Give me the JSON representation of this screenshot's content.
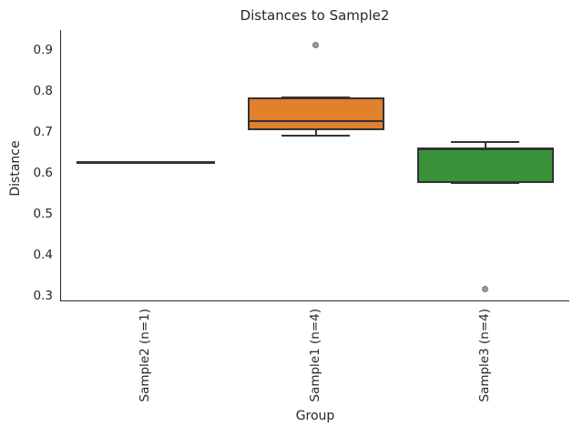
{
  "title": "Distances to Sample2",
  "axes": {
    "x_label": "Group",
    "y_label": "Distance",
    "y_tick_labels": [
      "0.9",
      "0.8",
      "0.7",
      "0.6",
      "0.5",
      "0.4",
      "0.3"
    ],
    "x_tick_labels": [
      "Sample2 (n=1)",
      "Sample1 (n=4)",
      "Sample3 (n=4)"
    ]
  },
  "colors": {
    "line": "#333333",
    "spine": "#262626",
    "text": "#262626",
    "flier_fill": "#9b9b9b",
    "flier_edge": "#757575",
    "background": "#ffffff"
  },
  "chart_data": {
    "type": "boxplot",
    "title": "Distances to Sample2",
    "xlabel": "Group",
    "ylabel": "Distance",
    "ylim": [
      0.287,
      0.949
    ],
    "y_ticks": [
      0.9,
      0.8,
      0.7,
      0.6,
      0.5,
      0.4,
      0.3
    ],
    "categories": [
      "Sample2 (n=1)",
      "Sample1 (n=4)",
      "Sample3 (n=4)"
    ],
    "grid": false,
    "legend": false,
    "groups": [
      {
        "label": "Sample2 (n=1)",
        "n": 1,
        "color": "#3274a1",
        "q1": 0.625,
        "median": 0.625,
        "q3": 0.625,
        "whisker_low": 0.625,
        "whisker_high": 0.625,
        "outliers": []
      },
      {
        "label": "Sample1 (n=4)",
        "n": 4,
        "color": "#e1812b",
        "q1": 0.705,
        "median": 0.727,
        "q3": 0.785,
        "whisker_low": 0.691,
        "whisker_high": 0.785,
        "outliers": [
          0.913
        ]
      },
      {
        "label": "Sample3 (n=4)",
        "n": 4,
        "color": "#3a923a",
        "q1": 0.575,
        "median": 0.657,
        "q3": 0.661,
        "whisker_low": 0.575,
        "whisker_high": 0.676,
        "outliers": [
          0.316
        ]
      }
    ]
  }
}
